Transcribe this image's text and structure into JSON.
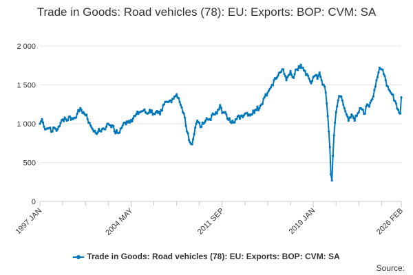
{
  "chart_data": {
    "type": "line",
    "title": "Trade in Goods: Road vehicles (78): EU: Exports: BOP: CVM: SA",
    "xlabel": "",
    "ylabel": "",
    "ylim": [
      0,
      2000
    ],
    "yticks": [
      0,
      500,
      1000,
      1500,
      2000
    ],
    "ytick_labels": [
      "0",
      "500",
      "1 000",
      "1 500",
      "2 000"
    ],
    "x_range": [
      "1997 JAN",
      "2026 FEB"
    ],
    "x_ticks": [
      {
        "label": "1997 JAN",
        "month_index": 0
      },
      {
        "label": "2004 MAY",
        "month_index": 88
      },
      {
        "label": "2011 SEP",
        "month_index": 176
      },
      {
        "label": "2019 JAN",
        "month_index": 264
      },
      {
        "label": "2026 FEB",
        "month_index": 349
      }
    ],
    "x_minor_month_indices": [
      22,
      44,
      66,
      110,
      132,
      154,
      198,
      220,
      242,
      286,
      308,
      330
    ],
    "anchors": [
      [
        0,
        1000
      ],
      [
        2,
        1060
      ],
      [
        4,
        960
      ],
      [
        8,
        940
      ],
      [
        10,
        950
      ],
      [
        12,
        900
      ],
      [
        14,
        950
      ],
      [
        16,
        910
      ],
      [
        18,
        960
      ],
      [
        20,
        1010
      ],
      [
        24,
        1080
      ],
      [
        26,
        1040
      ],
      [
        28,
        1090
      ],
      [
        32,
        1060
      ],
      [
        36,
        1130
      ],
      [
        38,
        1160
      ],
      [
        40,
        1180
      ],
      [
        42,
        1150
      ],
      [
        44,
        1110
      ],
      [
        46,
        1060
      ],
      [
        48,
        1010
      ],
      [
        50,
        950
      ],
      [
        52,
        900
      ],
      [
        56,
        890
      ],
      [
        60,
        930
      ],
      [
        64,
        960
      ],
      [
        66,
        1000
      ],
      [
        70,
        980
      ],
      [
        72,
        900
      ],
      [
        76,
        880
      ],
      [
        80,
        980
      ],
      [
        84,
        1030
      ],
      [
        88,
        1050
      ],
      [
        92,
        1100
      ],
      [
        96,
        1150
      ],
      [
        100,
        1170
      ],
      [
        104,
        1130
      ],
      [
        106,
        1180
      ],
      [
        110,
        1130
      ],
      [
        112,
        1150
      ],
      [
        114,
        1140
      ],
      [
        116,
        1120
      ],
      [
        118,
        1170
      ],
      [
        120,
        1250
      ],
      [
        124,
        1280
      ],
      [
        126,
        1300
      ],
      [
        128,
        1320
      ],
      [
        130,
        1350
      ],
      [
        132,
        1380
      ],
      [
        134,
        1330
      ],
      [
        136,
        1240
      ],
      [
        138,
        1150
      ],
      [
        140,
        1080
      ],
      [
        142,
        900
      ],
      [
        144,
        790
      ],
      [
        145,
        760
      ],
      [
        146,
        740
      ],
      [
        148,
        800
      ],
      [
        150,
        950
      ],
      [
        152,
        1040
      ],
      [
        154,
        1010
      ],
      [
        156,
        960
      ],
      [
        158,
        1000
      ],
      [
        160,
        1040
      ],
      [
        164,
        1060
      ],
      [
        168,
        1120
      ],
      [
        170,
        1150
      ],
      [
        172,
        1180
      ],
      [
        174,
        1240
      ],
      [
        176,
        1140
      ],
      [
        180,
        1120
      ],
      [
        182,
        1050
      ],
      [
        186,
        1040
      ],
      [
        190,
        1060
      ],
      [
        194,
        1100
      ],
      [
        198,
        1130
      ],
      [
        200,
        1140
      ],
      [
        204,
        1120
      ],
      [
        208,
        1180
      ],
      [
        210,
        1220
      ],
      [
        212,
        1200
      ],
      [
        214,
        1250
      ],
      [
        216,
        1320
      ],
      [
        218,
        1380
      ],
      [
        220,
        1400
      ],
      [
        222,
        1450
      ],
      [
        224,
        1500
      ],
      [
        226,
        1560
      ],
      [
        228,
        1580
      ],
      [
        230,
        1620
      ],
      [
        232,
        1660
      ],
      [
        234,
        1700
      ],
      [
        236,
        1640
      ],
      [
        238,
        1560
      ],
      [
        240,
        1620
      ],
      [
        242,
        1680
      ],
      [
        244,
        1600
      ],
      [
        246,
        1640
      ],
      [
        248,
        1700
      ],
      [
        250,
        1740
      ],
      [
        252,
        1760
      ],
      [
        254,
        1720
      ],
      [
        256,
        1680
      ],
      [
        258,
        1640
      ],
      [
        260,
        1580
      ],
      [
        262,
        1520
      ],
      [
        264,
        1600
      ],
      [
        266,
        1620
      ],
      [
        268,
        1580
      ],
      [
        270,
        1660
      ],
      [
        272,
        1560
      ],
      [
        274,
        1500
      ],
      [
        276,
        1400
      ],
      [
        278,
        1100
      ],
      [
        280,
        700
      ],
      [
        281,
        350
      ],
      [
        282,
        270
      ],
      [
        284,
        850
      ],
      [
        286,
        1150
      ],
      [
        288,
        1300
      ],
      [
        290,
        1350
      ],
      [
        292,
        1300
      ],
      [
        294,
        1200
      ],
      [
        296,
        1120
      ],
      [
        298,
        1040
      ],
      [
        300,
        1080
      ],
      [
        302,
        1100
      ],
      [
        304,
        1040
      ],
      [
        306,
        1100
      ],
      [
        308,
        1150
      ],
      [
        310,
        1200
      ],
      [
        312,
        1180
      ],
      [
        314,
        1130
      ],
      [
        316,
        1250
      ],
      [
        318,
        1220
      ],
      [
        320,
        1300
      ],
      [
        322,
        1350
      ],
      [
        324,
        1480
      ],
      [
        326,
        1600
      ],
      [
        328,
        1720
      ],
      [
        330,
        1700
      ],
      [
        332,
        1640
      ],
      [
        334,
        1560
      ],
      [
        336,
        1480
      ],
      [
        338,
        1420
      ],
      [
        340,
        1380
      ],
      [
        342,
        1300
      ],
      [
        344,
        1260
      ],
      [
        346,
        1180
      ],
      [
        347,
        1140
      ],
      [
        348,
        1130
      ],
      [
        349,
        1340
      ]
    ],
    "series": [
      {
        "name": "Trade in Goods: Road vehicles (78): EU: Exports: BOP: CVM: SA",
        "color": "#0077bb"
      }
    ],
    "legend_position": "bottom",
    "grid": true
  },
  "credits": "Source:"
}
